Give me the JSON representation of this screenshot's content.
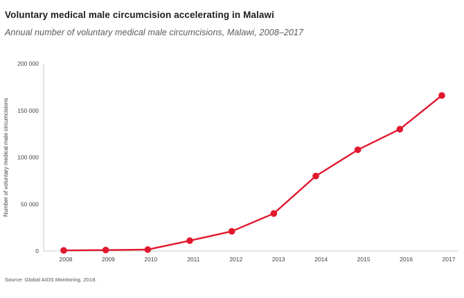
{
  "header": {
    "title": "Voluntary medical male circumcision accelerating in Malawi",
    "subtitle": "Annual number of voluntary medical male circumcisions, Malawi, 2008–2017"
  },
  "source": "Source: Global AIDS Monitoring, 2018.",
  "colors": {
    "line": "#e1182e",
    "marker": "#e1182e",
    "axis": "#c8c8c8",
    "title_text": "#1d1d1b",
    "subtitle_text": "#58595b",
    "tick_text": "#414042"
  },
  "chart_data": {
    "type": "line",
    "title": "Voluntary medical male circumcision accelerating in Malawi",
    "subtitle": "Annual number of voluntary medical male circumcisions, Malawi, 2008–2017",
    "x": [
      2008,
      2009,
      2010,
      2011,
      2012,
      2013,
      2014,
      2015,
      2016,
      2017
    ],
    "series": [
      {
        "name": "Voluntary medical male circumcisions",
        "values": [
          600,
          1000,
          1500,
          11000,
          21000,
          40000,
          80000,
          108000,
          130000,
          166000
        ]
      }
    ],
    "xlabel": "",
    "ylabel": "Number of voluntary medical male circumcisions",
    "ylim": [
      0,
      200000
    ],
    "yticks": [
      0,
      50000,
      100000,
      150000,
      200000
    ],
    "ytick_labels": [
      "0",
      "50 000",
      "100 000",
      "150 000",
      "200 000"
    ],
    "xtick_labels": [
      "2008",
      "2009",
      "2010",
      "2011",
      "2012",
      "2013",
      "2014",
      "2015",
      "2016",
      "2017"
    ],
    "grid": false,
    "legend_position": "none",
    "marker": "circle",
    "line_color": "#e1182e"
  }
}
